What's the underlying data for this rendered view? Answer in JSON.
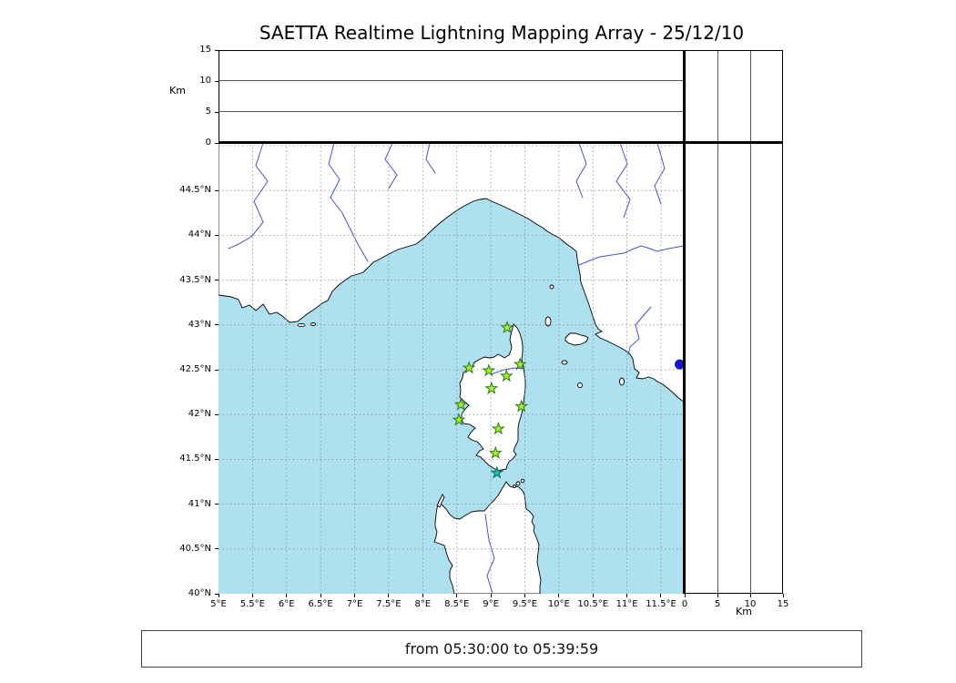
{
  "title": "SAETTA Realtime Lightning Mapping Array - 25/12/10",
  "footer": {
    "text": "from 05:30:00 to 05:39:59"
  },
  "axes": {
    "lon_ticks": [
      "5°E",
      "5.5°E",
      "6°E",
      "6.5°E",
      "7°E",
      "7.5°E",
      "8°E",
      "8.5°E",
      "9°E",
      "9.5°E",
      "10°E",
      "10.5°E",
      "11°E",
      "11.5°E"
    ],
    "lat_ticks": [
      "40°N",
      "40.5°N",
      "41°N",
      "41.5°N",
      "42°N",
      "42.5°N",
      "43°N",
      "43.5°N",
      "44°N",
      "44.5°N"
    ],
    "alt_ticks_top_panel": [
      "0",
      "5",
      "10",
      "15"
    ],
    "alt_ticks_right_panel": [
      "0",
      "5",
      "10",
      "15"
    ],
    "km_label_left": "Km",
    "km_label_right": "Km"
  },
  "colors": {
    "sea": "#aee1ef",
    "land": "#ffffff",
    "coast": "#000000",
    "river": "#4753cf",
    "grid": "#8c8c8c",
    "station_fill": "#a4f42a",
    "station_stroke": "#2c7a12",
    "station_alt_fill": "#2cb8aa",
    "station_alt_stroke": "#0b6f63",
    "point": "#1414cc"
  },
  "chart_data": {
    "type": "map",
    "title": "SAETTA Realtime Lightning Mapping Array - 25/12/10",
    "time_window": "from 05:30:00 to 05:39:59",
    "main_panel": {
      "x_axis": "longitude (°E)",
      "y_axis": "latitude (°N)",
      "lon_tick_range_deg_E": [
        5,
        11.5
      ],
      "lat_tick_range_deg_N": [
        40,
        44.5
      ],
      "grid_step_deg": 0.5,
      "grid_style": "dashed"
    },
    "top_panel": {
      "y_axis": "altitude (Km)",
      "range_km": [
        0,
        15
      ],
      "ticks_km": [
        0,
        5,
        10,
        15
      ],
      "points": []
    },
    "right_panel": {
      "x_axis": "altitude (Km)",
      "range_km": [
        0,
        15
      ],
      "ticks_km": [
        0,
        5,
        10,
        15
      ]
    },
    "stations": [
      {
        "lon_E": 9.24,
        "lat_N": 42.97
      },
      {
        "lon_E": 8.68,
        "lat_N": 42.52
      },
      {
        "lon_E": 8.97,
        "lat_N": 42.49
      },
      {
        "lon_E": 9.23,
        "lat_N": 42.43
      },
      {
        "lon_E": 9.43,
        "lat_N": 42.56
      },
      {
        "lon_E": 9.01,
        "lat_N": 42.29
      },
      {
        "lon_E": 8.56,
        "lat_N": 42.11
      },
      {
        "lon_E": 9.45,
        "lat_N": 42.09
      },
      {
        "lon_E": 8.53,
        "lat_N": 41.94
      },
      {
        "lon_E": 9.11,
        "lat_N": 41.84
      },
      {
        "lon_E": 9.07,
        "lat_N": 41.57
      },
      {
        "lon_E": 9.09,
        "lat_N": 41.35,
        "variant": "teal"
      }
    ],
    "right_panel_points": [
      {
        "alt_km": 0,
        "lat_N": 42.56
      }
    ]
  }
}
